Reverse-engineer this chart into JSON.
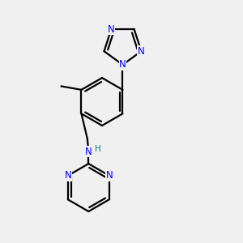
{
  "bg_color": "#f0f0f0",
  "bond_color": "#000000",
  "N_color": "#0000ff",
  "NH_color": "#008080",
  "line_width": 1.6,
  "font_size_atom": 8.5,
  "fig_size": [
    3.0,
    3.0
  ],
  "dpi": 100,
  "xlim": [
    0,
    10
  ],
  "ylim": [
    0,
    10
  ]
}
